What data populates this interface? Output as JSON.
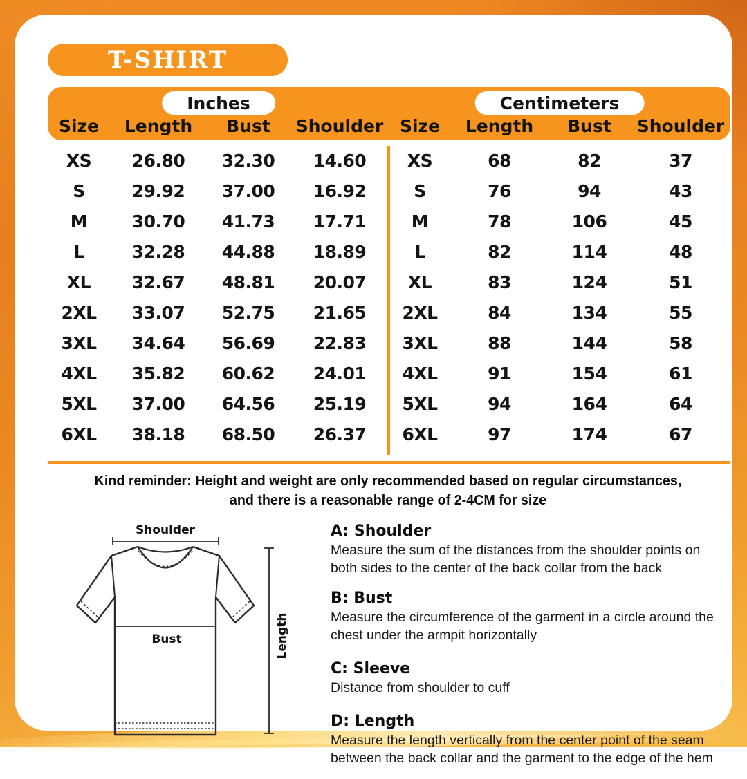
{
  "page": {
    "title": "T-SHIRT"
  },
  "size_chart": {
    "units": [
      {
        "unit_label": "Inches",
        "columns": [
          "Size",
          "Length",
          "Bust",
          "Shoulder"
        ],
        "rows": [
          [
            "XS",
            "26.80",
            "32.30",
            "14.60"
          ],
          [
            "S",
            "29.92",
            "37.00",
            "16.92"
          ],
          [
            "M",
            "30.70",
            "41.73",
            "17.71"
          ],
          [
            "L",
            "32.28",
            "44.88",
            "18.89"
          ],
          [
            "XL",
            "32.67",
            "48.81",
            "20.07"
          ],
          [
            "2XL",
            "33.07",
            "52.75",
            "21.65"
          ],
          [
            "3XL",
            "34.64",
            "56.69",
            "22.83"
          ],
          [
            "4XL",
            "35.82",
            "60.62",
            "24.01"
          ],
          [
            "5XL",
            "37.00",
            "64.56",
            "25.19"
          ],
          [
            "6XL",
            "38.18",
            "68.50",
            "26.37"
          ]
        ]
      },
      {
        "unit_label": "Centimeters",
        "columns": [
          "Size",
          "Length",
          "Bust",
          "Shoulder"
        ],
        "rows": [
          [
            "XS",
            "68",
            "82",
            "37"
          ],
          [
            "S",
            "76",
            "94",
            "43"
          ],
          [
            "M",
            "78",
            "106",
            "45"
          ],
          [
            "L",
            "82",
            "114",
            "48"
          ],
          [
            "XL",
            "83",
            "124",
            "51"
          ],
          [
            "2XL",
            "84",
            "134",
            "55"
          ],
          [
            "3XL",
            "88",
            "144",
            "58"
          ],
          [
            "4XL",
            "91",
            "154",
            "61"
          ],
          [
            "5XL",
            "94",
            "164",
            "64"
          ],
          [
            "6XL",
            "97",
            "174",
            "67"
          ]
        ]
      }
    ]
  },
  "reminder": {
    "line1": "Kind reminder: Height and weight are only recommended based on regular circumstances,",
    "line2": "and there is a reasonable range of 2-4CM for size"
  },
  "diagram": {
    "shoulder_label": "Shoulder",
    "bust_label": "Bust",
    "length_label": "Length"
  },
  "measure_guide": [
    {
      "heading": "A: Shoulder",
      "body": "Measure the sum of the distances from the shoulder points on both sides to the center of the back collar from the back"
    },
    {
      "heading": "B: Bust",
      "body": "Measure the circumference of the garment in a circle around the chest under the armpit horizontally"
    },
    {
      "heading": "C: Sleeve",
      "body": "Distance from shoulder to cuff"
    },
    {
      "heading": "D: Length",
      "body": "Measure the length vertically from the center point of the seam between the back collar and the garment to the edge of the hem"
    }
  ],
  "colors": {
    "accent_orange": "#F7941D",
    "background_top_orange": "#E87E1F",
    "background_bottom_gold": "#F7BC4D",
    "card_white": "#FFFFFF",
    "text_black": "#141414"
  }
}
